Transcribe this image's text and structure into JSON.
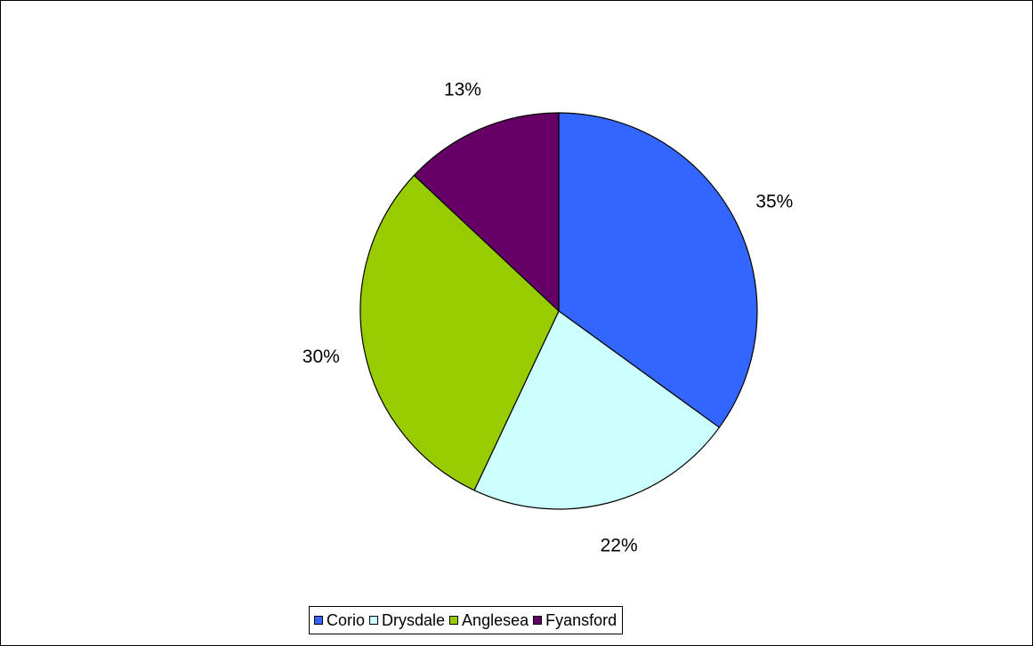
{
  "chart_data": {
    "type": "pie",
    "title": "",
    "categories": [
      "Corio",
      "Drysdale",
      "Anglesea",
      "Fyansford"
    ],
    "values": [
      35,
      22,
      30,
      13
    ],
    "value_labels": [
      "35%",
      "22%",
      "30%",
      "13%"
    ],
    "colors": [
      "#3366FF",
      "#CCFFFF",
      "#99CC00",
      "#660066"
    ],
    "start_angle_deg": 0,
    "direction": "clockwise",
    "legend_position": "bottom"
  }
}
